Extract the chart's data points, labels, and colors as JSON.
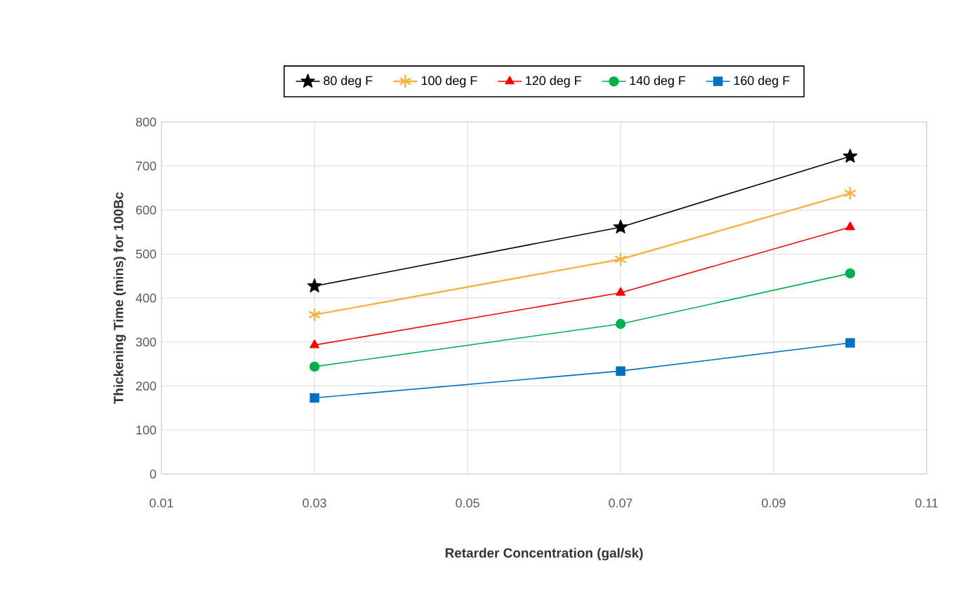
{
  "chart_data": {
    "type": "line",
    "xlabel": "Retarder Concentration  (gal/sk)",
    "ylabel": "Thickening Time (mins) for 100Bc",
    "x": [
      0.03,
      0.07,
      0.1
    ],
    "series": [
      {
        "name": "80 deg F",
        "color": "#000000",
        "marker": "star",
        "values": [
          427,
          561,
          722
        ]
      },
      {
        "name": "100 deg F",
        "color": "#f5b342",
        "marker": "cross",
        "values": [
          362,
          488,
          638
        ]
      },
      {
        "name": "120 deg F",
        "color": "#ff0000",
        "marker": "triangle",
        "values": [
          293,
          412,
          561
        ]
      },
      {
        "name": "140 deg F",
        "color": "#00b050",
        "marker": "circle",
        "values": [
          244,
          341,
          456
        ]
      },
      {
        "name": "160 deg F",
        "color": "#0070c0",
        "marker": "square",
        "values": [
          173,
          234,
          298
        ]
      }
    ],
    "xlim": [
      0.01,
      0.11
    ],
    "xticks": [
      0.01,
      0.03,
      0.05,
      0.07,
      0.09,
      0.11
    ],
    "ylim": [
      0,
      800
    ],
    "yticks": [
      0,
      100,
      200,
      300,
      400,
      500,
      600,
      700,
      800
    ],
    "grid": true,
    "legend": "top",
    "line_style": "solid"
  }
}
